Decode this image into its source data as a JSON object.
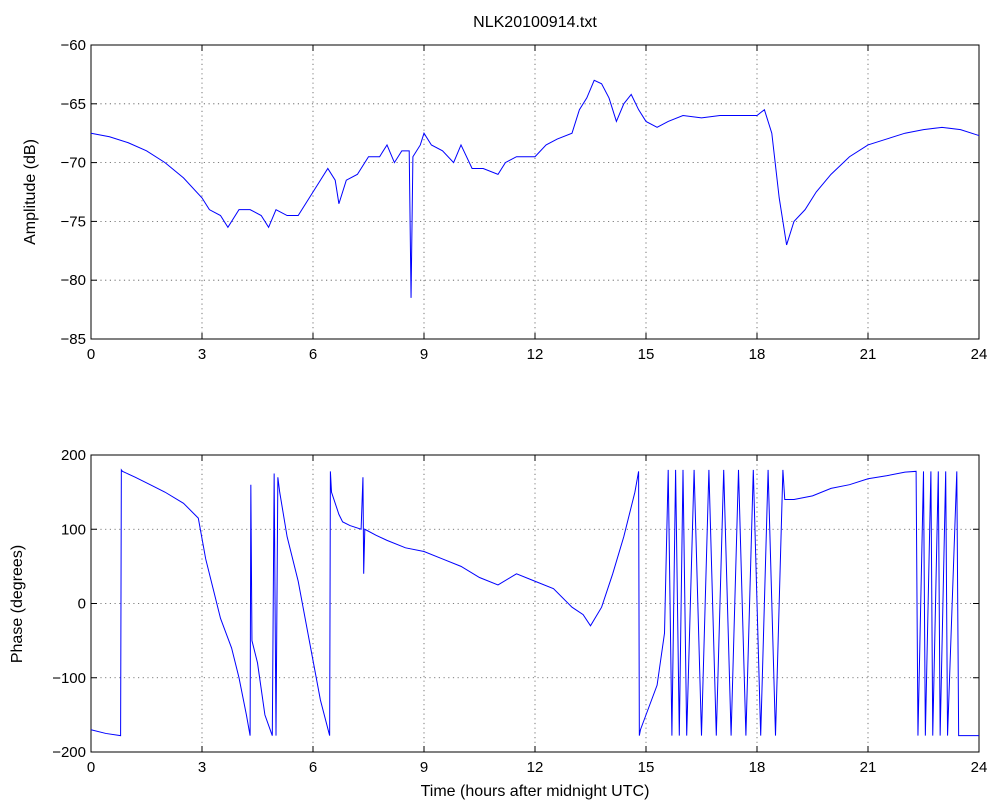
{
  "chart_data": [
    {
      "type": "line",
      "title": "NLK20100914.txt",
      "xlabel": "",
      "ylabel": "Amplitude (dB)",
      "xlim": [
        0,
        24
      ],
      "ylim": [
        -85,
        -60
      ],
      "xticks": [
        0,
        3,
        6,
        9,
        12,
        15,
        18,
        21,
        24
      ],
      "xtick_labels": [
        "0",
        "3",
        "6",
        "9",
        "12",
        "15",
        "18",
        "21",
        "24"
      ],
      "yticks": [
        -85,
        -80,
        -75,
        -70,
        -65,
        -60
      ],
      "ytick_labels": [
        "−85",
        "−80",
        "−75",
        "−70",
        "−65",
        "−60"
      ],
      "grid": true,
      "color": "#0000ff",
      "series": [
        {
          "x": [
            0,
            0.5,
            1,
            1.5,
            2,
            2.5,
            3,
            3.2,
            3.5,
            3.7,
            4,
            4.3,
            4.6,
            4.8,
            5,
            5.3,
            5.6,
            5.8,
            6,
            6.2,
            6.4,
            6.6,
            6.7,
            6.9,
            7.2,
            7.5,
            7.8,
            8,
            8.2,
            8.4,
            8.6,
            8.65,
            8.7,
            8.9,
            9,
            9.2,
            9.5,
            9.8,
            10,
            10.3,
            10.6,
            11,
            11.2,
            11.5,
            12,
            12.3,
            12.6,
            13,
            13.2,
            13.4,
            13.6,
            13.8,
            14,
            14.2,
            14.4,
            14.6,
            14.8,
            15,
            15.3,
            15.6,
            16,
            16.5,
            17,
            17.5,
            18,
            18.2,
            18.4,
            18.6,
            18.8,
            19,
            19.3,
            19.6,
            20,
            20.5,
            21,
            21.5,
            22,
            22.5,
            23,
            23.5,
            24
          ],
          "y": [
            -67.5,
            -67.8,
            -68.3,
            -69,
            -70,
            -71.3,
            -73,
            -74,
            -74.5,
            -75.5,
            -74,
            -74,
            -74.5,
            -75.5,
            -74,
            -74.5,
            -74.5,
            -73.5,
            -72.5,
            -71.5,
            -70.5,
            -71.5,
            -73.5,
            -71.5,
            -71,
            -69.5,
            -69.5,
            -68.5,
            -70,
            -69,
            -69,
            -81.5,
            -69.5,
            -68.5,
            -67.5,
            -68.5,
            -69,
            -70,
            -68.5,
            -70.5,
            -70.5,
            -71,
            -70,
            -69.5,
            -69.5,
            -68.5,
            -68,
            -67.5,
            -65.5,
            -64.5,
            -63,
            -63.3,
            -64.5,
            -66.5,
            -65,
            -64.2,
            -65.5,
            -66.5,
            -67,
            -66.5,
            -66,
            -66.2,
            -66,
            -66,
            -66,
            -65.5,
            -67.5,
            -73,
            -77,
            -75,
            -74,
            -72.5,
            -71,
            -69.5,
            -68.5,
            -68,
            -67.5,
            -67.2,
            -67,
            -67.2,
            -67.7
          ]
        }
      ]
    },
    {
      "type": "line",
      "title": "",
      "xlabel": "Time (hours after midnight UTC)",
      "ylabel": "Phase (degrees)",
      "xlim": [
        0,
        24
      ],
      "ylim": [
        -200,
        200
      ],
      "xticks": [
        0,
        3,
        6,
        9,
        12,
        15,
        18,
        21,
        24
      ],
      "xtick_labels": [
        "0",
        "3",
        "6",
        "9",
        "12",
        "15",
        "18",
        "21",
        "24"
      ],
      "yticks": [
        -200,
        -100,
        0,
        100,
        200
      ],
      "ytick_labels": [
        "−200",
        "−100",
        "0",
        "100",
        "200"
      ],
      "grid": true,
      "color": "#0000ff",
      "series": [
        {
          "x": [
            0,
            0.4,
            0.8,
            0.82,
            0.85,
            1.2,
            1.6,
            2,
            2.5,
            2.9,
            3.1,
            3.3,
            3.5,
            3.8,
            4.0,
            4.2,
            4.3,
            4.32,
            4.35,
            4.5,
            4.7,
            4.9,
            4.95,
            5.0,
            5.05,
            5.1,
            5.3,
            5.6,
            5.9,
            6.2,
            6.45,
            6.47,
            6.5,
            6.7,
            6.8,
            7.0,
            7.3,
            7.35,
            7.37,
            7.4,
            7.7,
            8.0,
            8.5,
            9.0,
            9.5,
            10,
            10.5,
            11,
            11.5,
            12,
            12.5,
            13,
            13.3,
            13.5,
            13.8,
            14.1,
            14.4,
            14.7,
            14.8,
            14.82,
            14.85,
            15.0,
            15.3,
            15.5,
            15.6,
            15.7,
            15.8,
            15.9,
            16.0,
            16.1,
            16.3,
            16.5,
            16.7,
            16.9,
            17.1,
            17.3,
            17.5,
            17.7,
            17.9,
            18.1,
            18.3,
            18.5,
            18.7,
            18.75,
            19,
            19.5,
            20,
            20.5,
            21,
            21.5,
            22,
            22.3,
            22.35,
            22.5,
            22.55,
            22.7,
            22.75,
            22.9,
            22.95,
            23.1,
            23.15,
            23.4,
            23.45,
            23.7,
            24
          ],
          "y": [
            -170,
            -175,
            -178,
            180,
            178,
            170,
            160,
            150,
            135,
            115,
            60,
            20,
            -20,
            -60,
            -100,
            -150,
            -178,
            160,
            -50,
            -80,
            -150,
            -178,
            175,
            -178,
            170,
            150,
            90,
            30,
            -50,
            -130,
            -178,
            178,
            150,
            120,
            110,
            105,
            100,
            170,
            40,
            100,
            92,
            85,
            75,
            70,
            60,
            50,
            35,
            25,
            40,
            30,
            20,
            -5,
            -15,
            -30,
            -5,
            40,
            90,
            150,
            178,
            -178,
            -170,
            -150,
            -110,
            -40,
            180,
            -178,
            180,
            -178,
            180,
            -178,
            180,
            -178,
            180,
            -178,
            180,
            -178,
            180,
            -178,
            180,
            -178,
            180,
            -178,
            180,
            140,
            140,
            145,
            155,
            160,
            168,
            172,
            177,
            178,
            -178,
            178,
            -178,
            178,
            -178,
            178,
            -178,
            178,
            -178,
            178,
            -178,
            -178,
            -178
          ]
        }
      ]
    }
  ]
}
